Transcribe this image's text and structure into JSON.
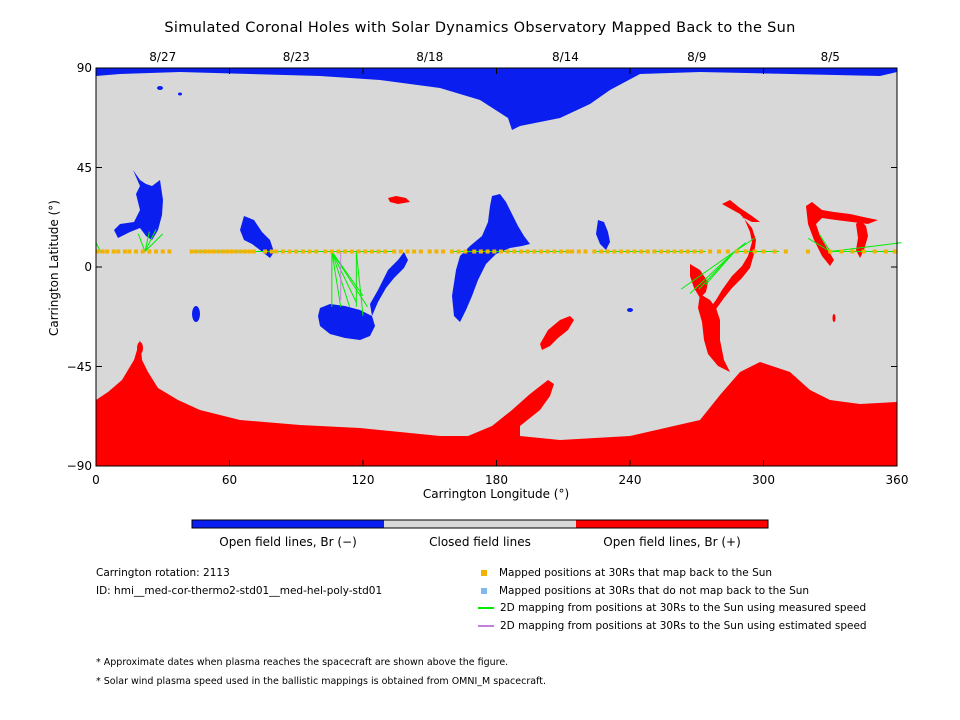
{
  "colors": {
    "open_neg": "#0a1ef0",
    "closed": "#d8d8d8",
    "open_pos": "#ff0000",
    "mapped_back": "#f2b200",
    "not_mapped_back": "#7fb8f0",
    "measured_speed": "#00ee00",
    "estimated_speed": "#c080e0"
  },
  "chart_data": {
    "type": "heatmap",
    "title": "Simulated Coronal Holes with Solar Dynamics Observatory Mapped Back to the Sun",
    "xlabel": "Carrington Longitude (°)",
    "ylabel": "Carrington Latitude (°)",
    "xlim": [
      0,
      360
    ],
    "ylim": [
      -90,
      90
    ],
    "x_ticks": [
      "0",
      "60",
      "120",
      "180",
      "240",
      "300",
      "360"
    ],
    "x_tick_values": [
      0,
      60,
      120,
      180,
      240,
      300,
      360
    ],
    "y_ticks": [
      "90",
      "45",
      "0",
      "−45",
      "−90"
    ],
    "y_tick_values": [
      90,
      45,
      0,
      -45,
      -90
    ],
    "top_dates": [
      {
        "label": "8/27",
        "lon": 30
      },
      {
        "label": "8/23",
        "lon": 90
      },
      {
        "label": "8/18",
        "lon": 150
      },
      {
        "label": "8/14",
        "lon": 211
      },
      {
        "label": "8/9",
        "lon": 270
      },
      {
        "label": "8/5",
        "lon": 330
      }
    ],
    "categories": [
      "Open field lines, Br (−)",
      "Closed field lines",
      "Open field lines, Br (+)"
    ],
    "mapped_positions_lat": 7,
    "mapped_positions_lon": [
      1,
      3,
      5,
      8,
      10,
      13,
      15,
      18,
      21,
      24,
      27,
      30,
      33,
      43,
      45,
      47,
      49,
      51,
      53,
      55,
      57,
      59,
      61,
      63,
      65,
      67,
      69,
      71,
      76,
      79,
      81,
      84,
      87,
      90,
      93,
      96,
      99,
      103,
      106,
      109,
      112,
      115,
      118,
      121,
      124,
      127,
      130,
      134,
      137,
      140,
      143,
      146,
      150,
      153,
      156,
      160,
      163,
      166,
      170,
      173,
      176,
      179,
      182,
      185,
      188,
      191,
      194,
      197,
      200,
      203,
      206,
      209,
      212,
      214,
      217,
      220,
      224,
      227,
      230,
      233,
      236,
      239,
      242,
      245,
      248,
      251,
      254,
      257,
      260,
      263,
      266,
      269,
      272,
      276,
      280,
      284,
      288,
      292,
      296,
      300,
      305,
      310,
      320,
      330,
      335,
      340,
      345,
      350,
      355,
      359
    ],
    "mapping_lines": [
      {
        "from_lon": 2,
        "to": [
          [
            0,
            11
          ]
        ]
      },
      {
        "from_lon": 22,
        "to": [
          [
            19,
            15
          ],
          [
            24,
            16
          ],
          [
            27,
            17
          ],
          [
            30,
            15
          ]
        ]
      },
      {
        "from_lon": 69,
        "to": [
          [
            43,
            7
          ],
          [
            50,
            7
          ],
          [
            57,
            7
          ],
          [
            62,
            7
          ],
          [
            66,
            7
          ],
          [
            70,
            7
          ],
          [
            73,
            7
          ],
          [
            78,
            7
          ],
          [
            81,
            7
          ],
          [
            86,
            7
          ],
          [
            91,
            7
          ],
          [
            96,
            7
          ],
          [
            101,
            7
          ],
          [
            109,
            7
          ]
        ]
      },
      {
        "from_lon": 106,
        "to": [
          [
            105,
            7
          ],
          [
            106,
            -18
          ],
          [
            110,
            -18
          ],
          [
            114,
            -18
          ],
          [
            117,
            -16
          ],
          [
            120,
            -13
          ],
          [
            122,
            -18
          ],
          [
            125,
            7
          ],
          [
            128,
            7
          ],
          [
            131,
            7
          ],
          [
            134,
            7
          ]
        ]
      },
      {
        "from_lon": 117,
        "to": [
          [
            117,
            -18
          ],
          [
            120,
            -22
          ]
        ]
      },
      {
        "from_lon": 183,
        "to": [
          [
            160,
            7
          ],
          [
            168,
            7
          ],
          [
            174,
            7
          ],
          [
            180,
            7
          ],
          [
            186,
            7
          ],
          [
            192,
            7
          ],
          [
            198,
            7
          ],
          [
            204,
            7
          ],
          [
            214,
            7
          ]
        ]
      },
      {
        "from_lon": 228,
        "to": [
          [
            225,
            7
          ],
          [
            240,
            7
          ],
          [
            247,
            7
          ]
        ]
      },
      {
        "from_lon": 259,
        "to": [
          [
            250,
            7
          ],
          [
            262,
            7
          ],
          [
            266,
            7
          ],
          [
            270,
            7
          ],
          [
            274,
            7
          ]
        ]
      },
      {
        "from_lon": 287,
        "to": [
          [
            263,
            -10
          ],
          [
            267,
            -12
          ],
          [
            271,
            -10
          ],
          [
            274,
            -8
          ],
          [
            292,
            11
          ],
          [
            296,
            13
          ],
          [
            300,
            7
          ],
          [
            307,
            7
          ]
        ]
      },
      {
        "from_lon": 330,
        "to": [
          [
            320,
            13
          ],
          [
            325,
            15
          ],
          [
            330,
            7
          ],
          [
            338,
            7
          ],
          [
            346,
            7
          ],
          [
            350,
            7
          ],
          [
            355,
            7
          ],
          [
            359,
            7
          ],
          [
            362,
            11
          ]
        ]
      }
    ],
    "estimated_line": {
      "lon": 110,
      "lat_from": 7,
      "lat_to": -15
    }
  },
  "colorbar": {
    "labels": [
      "Open field lines, Br (−)",
      "Closed field lines",
      "Open field lines, Br (+)"
    ]
  },
  "info": {
    "rotation": "Carrington rotation: 2113",
    "id": "ID: hmi__med-cor-thermo2-std01__med-hel-poly-std01"
  },
  "legend": [
    {
      "label": "Mapped positions at 30Rs that map back to the Sun",
      "kind": "square",
      "color": "#f2b200"
    },
    {
      "label": "Mapped positions at 30Rs that do not map back to the Sun",
      "kind": "square",
      "color": "#7fb8f0"
    },
    {
      "label": "2D mapping from positions at 30Rs to the Sun using measured speed",
      "kind": "line",
      "color": "#00ee00"
    },
    {
      "label": "2D mapping from positions at 30Rs to the Sun using estimated speed",
      "kind": "line",
      "color": "#c080e0"
    }
  ],
  "notes": [
    "* Approximate dates when plasma reaches the spacecraft are shown above the figure.",
    "* Solar wind plasma speed used in the ballistic mappings is obtained from OMNI_M spacecraft."
  ]
}
